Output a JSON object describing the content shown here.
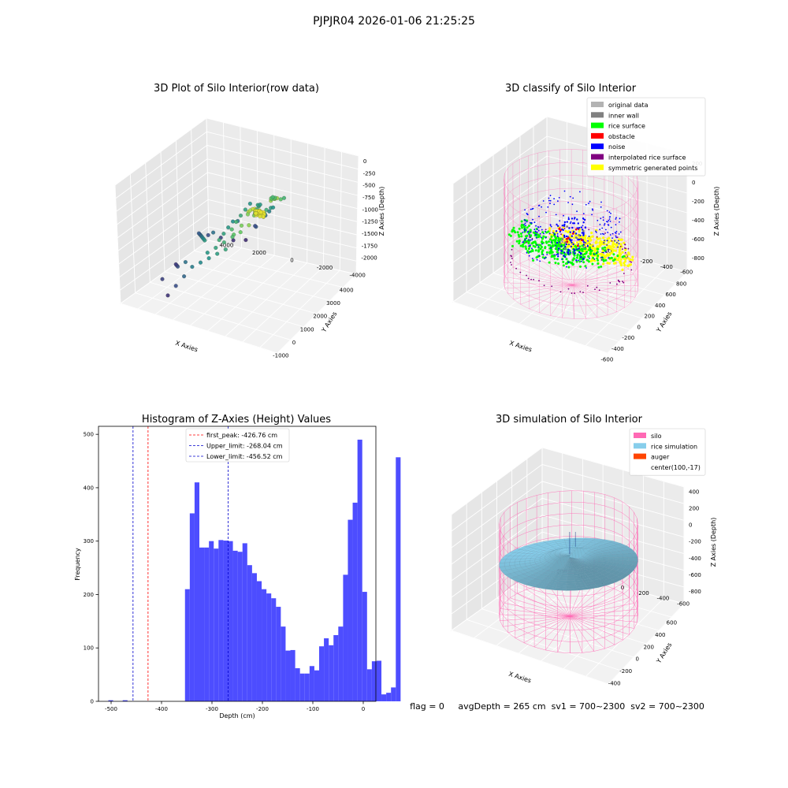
{
  "figure": {
    "suptitle": "PJPJR04 2026-01-06 21:25:25",
    "footer": "flag = 0     avgDepth = 265 cm  sv1 = 700~2300  sv2 = 700~2300"
  },
  "colors": {
    "background": "#ffffff",
    "pane_floor": "#f2f2f2",
    "pane_side": "#e6e6e6",
    "grid": "#ffffff",
    "hist_bar": "#4d4dff",
    "first_peak_line": "#ff0000",
    "limit_line": "#0000cc",
    "silo_wire": "#ff69b4",
    "rice_surface": "#87ceeb",
    "auger": "#ff4500"
  },
  "chart_data": [
    {
      "type": "scatter3d",
      "title": "3D Plot of Silo Interior(row data)",
      "xlabel": "X Axies",
      "ylabel": "Y Axies",
      "zlabel": "Z Axies (Depth)",
      "xticks": [
        "-1000",
        "0",
        "1000",
        "2000",
        "3000",
        "4000"
      ],
      "yticks": [
        "-4000",
        "-2000",
        "0",
        "2000",
        "4000"
      ],
      "zticks": [
        "0",
        "-250",
        "-500",
        "-750",
        "-1000",
        "-1250",
        "-1500",
        "-1750",
        "-2000"
      ],
      "xlim": [
        -1500,
        4500
      ],
      "ylim": [
        -4500,
        4500
      ],
      "zlim": [
        -2250,
        0
      ],
      "colormap": "viridis",
      "points": [
        [
          100,
          2000,
          -150
        ],
        [
          200,
          1800,
          -200
        ],
        [
          0,
          2200,
          -180
        ],
        [
          300,
          2100,
          -220
        ],
        [
          150,
          1600,
          -260
        ],
        [
          400,
          1500,
          -300
        ],
        [
          500,
          1700,
          -320
        ],
        [
          -200,
          1900,
          -400
        ],
        [
          -300,
          1500,
          -550
        ],
        [
          -400,
          1200,
          -600
        ],
        [
          600,
          1200,
          -450
        ],
        [
          800,
          1400,
          -500
        ],
        [
          1000,
          1600,
          -520
        ],
        [
          1200,
          1300,
          -550
        ],
        [
          1400,
          1000,
          -650
        ],
        [
          1600,
          800,
          -700
        ],
        [
          1800,
          1200,
          -720
        ],
        [
          2000,
          600,
          -760
        ],
        [
          2200,
          400,
          -800
        ],
        [
          2400,
          800,
          -820
        ],
        [
          2600,
          200,
          -850
        ],
        [
          2800,
          0,
          -900
        ],
        [
          3000,
          -200,
          -950
        ],
        [
          3200,
          400,
          -1000
        ],
        [
          3400,
          -400,
          -1050
        ],
        [
          -500,
          800,
          -900
        ],
        [
          -600,
          400,
          -1000
        ],
        [
          -700,
          0,
          -1100
        ],
        [
          -800,
          -400,
          -1200
        ],
        [
          -900,
          -800,
          -1300
        ],
        [
          -1000,
          -1200,
          -1500
        ],
        [
          -1100,
          -1600,
          -1700
        ],
        [
          -1200,
          -2000,
          -1900
        ],
        [
          0,
          -800,
          -1000
        ],
        [
          400,
          -1200,
          -1100
        ],
        [
          800,
          -1600,
          -1200
        ],
        [
          1200,
          -2000,
          -1300
        ],
        [
          1600,
          -2400,
          -1400
        ],
        [
          2000,
          -2800,
          -1500
        ],
        [
          2400,
          -3200,
          -1600
        ],
        [
          2800,
          -3000,
          -1700
        ],
        [
          3200,
          -2600,
          -1800
        ],
        [
          3600,
          -2200,
          -1900
        ],
        [
          4000,
          -1800,
          -1950
        ],
        [
          3800,
          -1000,
          -1600
        ],
        [
          3000,
          -1400,
          -1350
        ],
        [
          2200,
          -1000,
          -1150
        ],
        [
          1400,
          -600,
          -1050
        ],
        [
          600,
          -200,
          -950
        ],
        [
          -200,
          200,
          -850
        ],
        [
          1000,
          200,
          -780
        ],
        [
          1800,
          -200,
          -880
        ],
        [
          2600,
          -600,
          -980
        ],
        [
          3400,
          -1000,
          -1080
        ],
        [
          200,
          600,
          -700
        ],
        [
          -400,
          -1600,
          -1400
        ],
        [
          0,
          -2400,
          -1650
        ],
        [
          400,
          -2800,
          -1750
        ],
        [
          800,
          -3200,
          -1850
        ],
        [
          -600,
          -2800,
          -1800
        ],
        [
          1500,
          1800,
          -350
        ],
        [
          1700,
          2000,
          -330
        ],
        [
          1900,
          1700,
          -420
        ],
        [
          2100,
          1500,
          -480
        ],
        [
          2300,
          1200,
          -560
        ],
        [
          2500,
          1000,
          -610
        ],
        [
          2700,
          1400,
          -640
        ],
        [
          2900,
          900,
          -700
        ],
        [
          3100,
          600,
          -760
        ],
        [
          3300,
          1100,
          -780
        ],
        [
          -100,
          1400,
          -480
        ],
        [
          -250,
          1000,
          -700
        ],
        [
          -350,
          600,
          -820
        ],
        [
          -450,
          200,
          -940
        ],
        [
          -550,
          -200,
          -1050
        ],
        [
          3600,
          200,
          -1100
        ],
        [
          3800,
          -200,
          -1250
        ],
        [
          4000,
          -600,
          -1400
        ],
        [
          4200,
          -1400,
          -1700
        ],
        [
          2000,
          -2000,
          -1400
        ]
      ]
    },
    {
      "type": "scatter3d",
      "title": "3D classify of Silo Interior",
      "xlabel": "X Axies",
      "ylabel": "Y Axies",
      "zlabel": "Z Axies (Depth)",
      "xticks": [
        "-600",
        "-400",
        "-200",
        "0",
        "200",
        "400",
        "600",
        "800"
      ],
      "yticks": [
        "-600",
        "-400",
        "-200",
        "0",
        "200",
        "400",
        "600"
      ],
      "zticks": [
        "200",
        "0",
        "-200",
        "-400",
        "-600",
        "-800"
      ],
      "xlim": [
        -650,
        850
      ],
      "ylim": [
        -700,
        700
      ],
      "zlim": [
        -950,
        300
      ],
      "legend_position": "upper-right",
      "legend": [
        {
          "label": "original data",
          "color": "#b3b3b3"
        },
        {
          "label": "inner wall",
          "color": "#808080"
        },
        {
          "label": "rice surface",
          "color": "#00ff00"
        },
        {
          "label": "obstacle",
          "color": "#ff0000"
        },
        {
          "label": "noise",
          "color": "#0000ff"
        },
        {
          "label": "interpolated rice surface",
          "color": "#800080"
        },
        {
          "label": "symmetric generated points",
          "color": "#ffff00"
        }
      ],
      "silo": {
        "center": [
          100,
          -17
        ],
        "radius": 560,
        "zbottom": -900,
        "ztop": 200
      }
    },
    {
      "type": "bar",
      "title": "Histogram of Z-Axies (Height) Values",
      "xlabel": "Depth (cm)",
      "ylabel": "Frequency",
      "xlim": [
        -525,
        25
      ],
      "ylim": [
        0,
        515
      ],
      "xticks": [
        -500,
        -400,
        -300,
        -200,
        -100,
        0
      ],
      "yticks": [
        0,
        100,
        200,
        300,
        400,
        500
      ],
      "bin_width": 9.5,
      "bins_start": -515,
      "values": [
        0,
        2,
        0,
        0,
        2,
        0,
        0,
        0,
        0,
        0,
        0,
        0,
        0,
        0,
        0,
        0,
        0,
        210,
        352,
        410,
        288,
        288,
        300,
        286,
        302,
        301,
        300,
        282,
        280,
        296,
        255,
        240,
        225,
        210,
        202,
        193,
        177,
        140,
        95,
        96,
        62,
        52,
        52,
        66,
        58,
        103,
        118,
        105,
        124,
        140,
        237,
        340,
        372,
        490,
        205,
        60,
        75,
        76,
        13,
        16,
        26,
        457
      ],
      "legend_position": "upper-center",
      "vlines": [
        {
          "label": "first_peak: -426.76 cm",
          "x": -426.76,
          "color": "#ff0000"
        },
        {
          "label": "Upper_limit: -268.04 cm",
          "x": -268.04,
          "color": "#0000cc"
        },
        {
          "label": "Lower_limit: -456.52 cm",
          "x": -456.52,
          "color": "#0000cc"
        }
      ]
    },
    {
      "type": "surface3d",
      "title": "3D simulation of Silo Interior",
      "xlabel": "X Axies",
      "ylabel": "Y Axies",
      "zlabel": "Z Axies (Depth)",
      "xticks": [
        "-400",
        "-200",
        "0",
        "200",
        "400",
        "600"
      ],
      "yticks": [
        "-600",
        "-400",
        "-200",
        "0",
        "200",
        "400",
        "600"
      ],
      "zticks": [
        "400",
        "200",
        "0",
        "-200",
        "-400",
        "-600",
        "-800"
      ],
      "xlim": [
        -560,
        760
      ],
      "ylim": [
        -700,
        700
      ],
      "zlim": [
        -950,
        450
      ],
      "legend_position": "upper-right",
      "legend": [
        {
          "label": "silo",
          "color": "#ff69b4"
        },
        {
          "label": "rice simulation",
          "color": "#87ceeb"
        },
        {
          "label": "auger",
          "color": "#ff4500"
        },
        {
          "label": "center(100,-17)",
          "color": ""
        }
      ],
      "silo": {
        "center": [
          100,
          -17
        ],
        "radius": 560,
        "zbottom": -900,
        "ztop": 200
      }
    }
  ]
}
